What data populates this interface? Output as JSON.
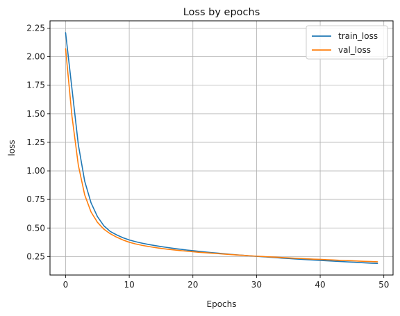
{
  "chart_data": {
    "type": "line",
    "title": "Loss by epochs",
    "xlabel": "Epochs",
    "ylabel": "loss",
    "xlim": [
      -2.45,
      51.45
    ],
    "ylim": [
      0.088,
      2.314
    ],
    "xticks": [
      0,
      10,
      20,
      30,
      40,
      50
    ],
    "yticks": [
      0.25,
      0.5,
      0.75,
      1.0,
      1.25,
      1.5,
      1.75,
      2.0,
      2.25
    ],
    "grid": true,
    "legend_position": "top-right",
    "x": [
      0,
      1,
      2,
      3,
      4,
      5,
      6,
      7,
      8,
      9,
      10,
      11,
      12,
      13,
      14,
      15,
      16,
      17,
      18,
      19,
      20,
      21,
      22,
      23,
      24,
      25,
      26,
      27,
      28,
      29,
      30,
      31,
      32,
      33,
      34,
      35,
      36,
      37,
      38,
      39,
      40,
      41,
      42,
      43,
      44,
      45,
      46,
      47,
      48,
      49
    ],
    "series": [
      {
        "name": "train_loss",
        "color": "#1f77b4",
        "values": [
          2.21,
          1.72,
          1.23,
          0.91,
          0.72,
          0.6,
          0.52,
          0.47,
          0.44,
          0.415,
          0.395,
          0.38,
          0.367,
          0.356,
          0.346,
          0.337,
          0.329,
          0.321,
          0.314,
          0.307,
          0.301,
          0.295,
          0.289,
          0.284,
          0.279,
          0.274,
          0.269,
          0.264,
          0.26,
          0.256,
          0.252,
          0.248,
          0.244,
          0.24,
          0.236,
          0.233,
          0.229,
          0.226,
          0.222,
          0.219,
          0.216,
          0.213,
          0.21,
          0.207,
          0.204,
          0.201,
          0.198,
          0.195,
          0.192,
          0.19
        ]
      },
      {
        "name": "val_loss",
        "color": "#ff7f0e",
        "values": [
          2.07,
          1.48,
          1.05,
          0.79,
          0.64,
          0.55,
          0.49,
          0.45,
          0.42,
          0.395,
          0.375,
          0.36,
          0.348,
          0.338,
          0.329,
          0.321,
          0.314,
          0.308,
          0.302,
          0.297,
          0.292,
          0.287,
          0.283,
          0.279,
          0.275,
          0.271,
          0.267,
          0.263,
          0.26,
          0.256,
          0.253,
          0.25,
          0.247,
          0.244,
          0.241,
          0.238,
          0.235,
          0.233,
          0.23,
          0.227,
          0.225,
          0.222,
          0.22,
          0.217,
          0.215,
          0.213,
          0.21,
          0.208,
          0.206,
          0.204
        ]
      }
    ]
  }
}
